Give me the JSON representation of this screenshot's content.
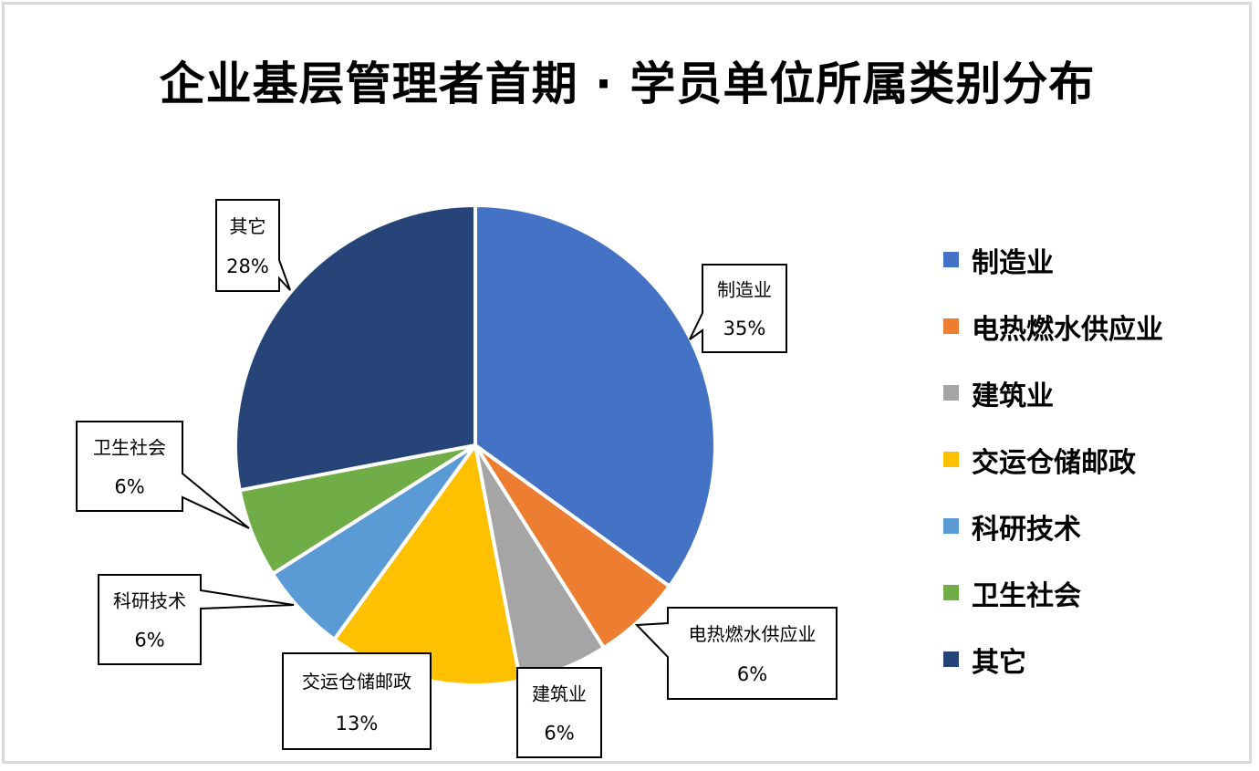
{
  "title": "企业基层管理者首期 · 学员单位所属类别分布",
  "chart_data": {
    "type": "pie",
    "title": "企业基层管理者首期 · 学员单位所属类别分布",
    "categories": [
      "制造业",
      "电热燃水供应业",
      "建筑业",
      "交运仓储邮政",
      "科研技术",
      "卫生社会",
      "其它"
    ],
    "values": [
      35,
      6,
      6,
      13,
      6,
      6,
      28
    ],
    "labels": [
      "35%",
      "6%",
      "6%",
      "13%",
      "6%",
      "6%",
      "28%"
    ],
    "colors": [
      "#4472c4",
      "#ed7d31",
      "#a5a5a5",
      "#ffc000",
      "#5b9bd5",
      "#70ad47",
      "#264478"
    ],
    "start_angle": "12 o'clock, clockwise",
    "legend_position": "right",
    "data_labels": "callouts with category name and percentage"
  },
  "legend": [
    {
      "label": "制造业",
      "color": "#4472c4"
    },
    {
      "label": "电热燃水供应业",
      "color": "#ed7d31"
    },
    {
      "label": "建筑业",
      "color": "#a5a5a5"
    },
    {
      "label": "交运仓储邮政",
      "color": "#ffc000"
    },
    {
      "label": "科研技术",
      "color": "#5b9bd5"
    },
    {
      "label": "卫生社会",
      "color": "#70ad47"
    },
    {
      "label": "其它",
      "color": "#264478"
    }
  ]
}
